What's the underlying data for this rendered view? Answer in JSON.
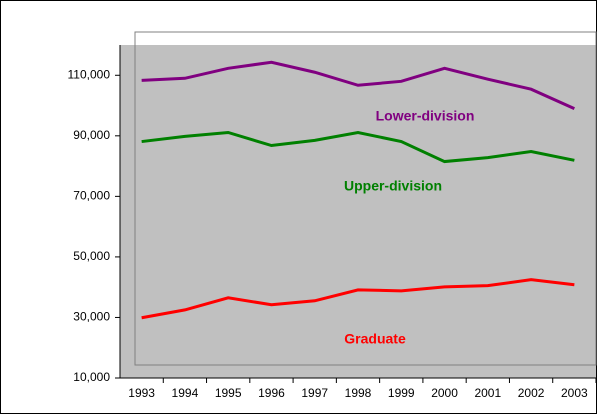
{
  "chart_data": {
    "type": "line",
    "categories": [
      "1993",
      "1994",
      "1995",
      "1996",
      "1997",
      "1998",
      "1999",
      "2000",
      "2001",
      "2002",
      "2003"
    ],
    "series": [
      {
        "name": "Lower-division",
        "color": "#800080",
        "values": [
          108300,
          109000,
          112300,
          114300,
          111000,
          106700,
          108000,
          112300,
          108700,
          105400,
          99000
        ]
      },
      {
        "name": "Upper-division",
        "color": "#008000",
        "values": [
          88100,
          89800,
          91100,
          86800,
          88500,
          91100,
          88100,
          81500,
          82800,
          84800,
          81900
        ]
      },
      {
        "name": "Graduate",
        "color": "#ff0000",
        "values": [
          29900,
          32500,
          36500,
          34200,
          35500,
          39100,
          38800,
          40100,
          40500,
          42500,
          40800
        ]
      }
    ],
    "ylim": [
      10000,
      120000
    ],
    "yticks": [
      {
        "value": 10000,
        "label": "10,000"
      },
      {
        "value": 30000,
        "label": "30,000"
      },
      {
        "value": 50000,
        "label": "50,000"
      },
      {
        "value": 70000,
        "label": "70,000"
      },
      {
        "value": 90000,
        "label": "90,000"
      },
      {
        "value": 110000,
        "label": "110,000"
      }
    ],
    "plot_background": "#c0c0c0"
  }
}
